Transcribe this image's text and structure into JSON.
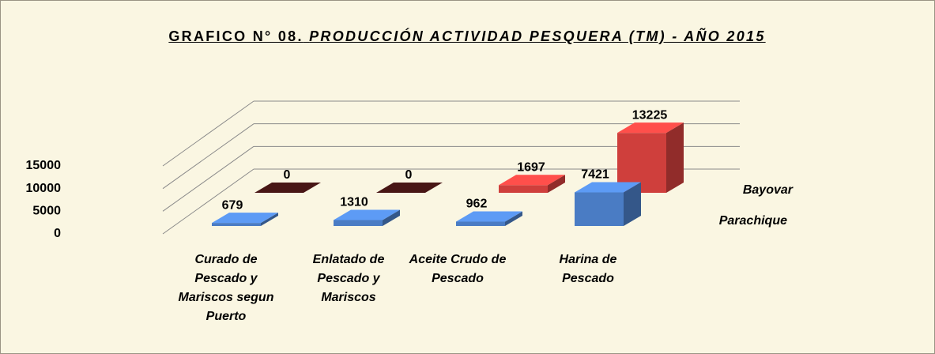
{
  "chart_data": {
    "type": "bar3d",
    "title_prefix": "GRAFICO N° 08.",
    "title": "PRODUCCIÓN ACTIVIDAD PESQUERA (TM) - AÑO 2015",
    "categories": [
      "Curado de Pescado y Mariscos segun Puerto",
      "Enlatado de Pescado y Mariscos",
      "Aceite Crudo de Pescado",
      "Harina de Pescado"
    ],
    "series": [
      {
        "name": "Parachique",
        "color": "#4a7cc4",
        "values": [
          679,
          1310,
          962,
          7421
        ]
      },
      {
        "name": "Bayovar",
        "color": "#cf3f3c",
        "values": [
          0,
          0,
          1697,
          13225
        ]
      }
    ],
    "ylim": [
      0,
      15000
    ],
    "yticks": [
      0,
      5000,
      10000,
      15000
    ],
    "grid": true
  }
}
